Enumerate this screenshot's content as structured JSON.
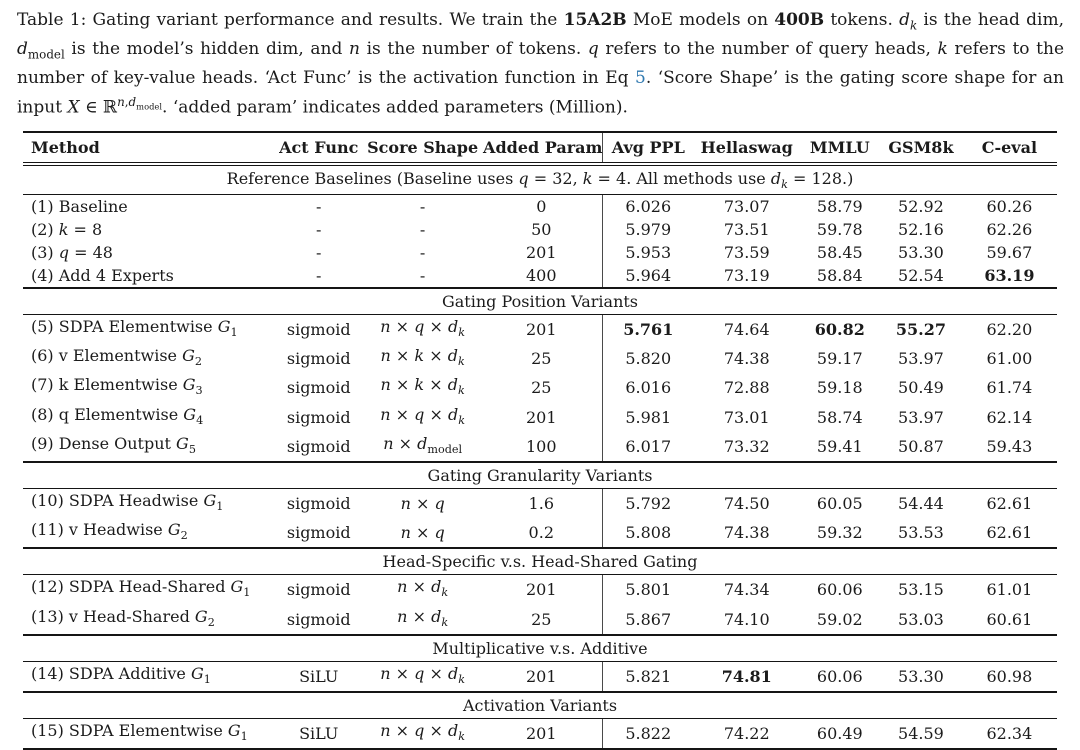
{
  "colors": {
    "text": "#1b1b1b",
    "rule": "#151515",
    "divider": "#4a4a4a",
    "link": "#3079b0"
  },
  "caption": {
    "text": "Table 1: Gating variant performance and results. We train the [[b]]15A2B[[/b]] MoE models on [[b]]400B[[/b]] tokens. [[i]]d[[/i]][[sub]][[i]]k[[/i]][[/sub]] is the head dim, [[i]]d[[/i]][[sub]]model[[/sub]] is the model’s hidden dim, and [[i]]n[[/i]] is the number of tokens. [[i]]q[[/i]] refers to the number of query heads, [[i]]k[[/i]] refers to the number of key-value heads. ‘Act Func’ is the activation function in Eq [[link]]5[[/link]]. ‘Score Shape’ is the gating score shape for an input [[i]]X[[/i]] ∈ ℝ[[sup]][[i]]n[[/i]],[[i]]d[[/i]][[sub]]model[[/sub]][[/sup]]. ‘added param’ indicates added parameters (Million)."
  },
  "table": {
    "columns": [
      {
        "key": "method",
        "label": "Method"
      },
      {
        "key": "act-func",
        "label": "Act Func"
      },
      {
        "key": "score-shape",
        "label": "Score Shape"
      },
      {
        "key": "added-param",
        "label": "Added Param"
      },
      {
        "key": "avg-ppl",
        "label": "Avg PPL"
      },
      {
        "key": "hellaswag",
        "label": "Hellaswag"
      },
      {
        "key": "mmlu",
        "label": "MMLU"
      },
      {
        "key": "gsm8k",
        "label": "GSM8k"
      },
      {
        "key": "c-eval",
        "label": "C-eval"
      }
    ],
    "sections": [
      {
        "title": "Reference Baselines (Baseline uses [[i]]q[[/i]] = 32, [[i]]k[[/i]] = 4. All methods use [[i]]d[[/i]][[sub]][[i]]k[[/i]][[/sub]] = 128.)",
        "rows": [
          [
            "(1) Baseline",
            "-",
            "-",
            "0",
            "6.026",
            "73.07",
            "58.79",
            "52.92",
            "60.26"
          ],
          [
            "(2) [[i]]k[[/i]] = 8",
            "-",
            "-",
            "50",
            "5.979",
            "73.51",
            "59.78",
            "52.16",
            "62.26"
          ],
          [
            "(3) [[i]]q[[/i]] = 48",
            "-",
            "-",
            "201",
            "5.953",
            "73.59",
            "58.45",
            "53.30",
            "59.67"
          ],
          [
            "(4) Add 4 Experts",
            "-",
            "-",
            "400",
            "5.964",
            "73.19",
            "58.84",
            "52.54",
            "[[b]]63.19[[/b]]"
          ]
        ]
      },
      {
        "title": "Gating Position Variants",
        "rows": [
          [
            "(5) SDPA Elementwise [[i]]G[[/i]][[sub]]1[[/sub]]",
            "sigmoid",
            "[[i]]n[[/i]] × [[i]]q[[/i]] × [[i]]d[[/i]][[sub]][[i]]k[[/i]][[/sub]]",
            "201",
            "[[b]]5.761[[/b]]",
            "74.64",
            "[[b]]60.82[[/b]]",
            "[[b]]55.27[[/b]]",
            "62.20"
          ],
          [
            "(6) v Elementwise [[i]]G[[/i]][[sub]]2[[/sub]]",
            "sigmoid",
            "[[i]]n[[/i]] × [[i]]k[[/i]] × [[i]]d[[/i]][[sub]][[i]]k[[/i]][[/sub]]",
            "25",
            "5.820",
            "74.38",
            "59.17",
            "53.97",
            "61.00"
          ],
          [
            "(7) k Elementwise [[i]]G[[/i]][[sub]]3[[/sub]]",
            "sigmoid",
            "[[i]]n[[/i]] × [[i]]k[[/i]] × [[i]]d[[/i]][[sub]][[i]]k[[/i]][[/sub]]",
            "25",
            "6.016",
            "72.88",
            "59.18",
            "50.49",
            "61.74"
          ],
          [
            "(8) q Elementwise [[i]]G[[/i]][[sub]]4[[/sub]]",
            "sigmoid",
            "[[i]]n[[/i]] × [[i]]q[[/i]] × [[i]]d[[/i]][[sub]][[i]]k[[/i]][[/sub]]",
            "201",
            "5.981",
            "73.01",
            "58.74",
            "53.97",
            "62.14"
          ],
          [
            "(9) Dense Output [[i]]G[[/i]][[sub]]5[[/sub]]",
            "sigmoid",
            "[[i]]n[[/i]] × [[i]]d[[/i]][[sub]]model[[/sub]]",
            "100",
            "6.017",
            "73.32",
            "59.41",
            "50.87",
            "59.43"
          ]
        ]
      },
      {
        "title": "Gating Granularity Variants",
        "rows": [
          [
            "(10) SDPA Headwise [[i]]G[[/i]][[sub]]1[[/sub]]",
            "sigmoid",
            "[[i]]n[[/i]] × [[i]]q[[/i]]",
            "1.6",
            "5.792",
            "74.50",
            "60.05",
            "54.44",
            "62.61"
          ],
          [
            "(11) v Headwise [[i]]G[[/i]][[sub]]2[[/sub]]",
            "sigmoid",
            "[[i]]n[[/i]] × [[i]]q[[/i]]",
            "0.2",
            "5.808",
            "74.38",
            "59.32",
            "53.53",
            "62.61"
          ]
        ]
      },
      {
        "title": "Head-Specific v.s. Head-Shared Gating",
        "rows": [
          [
            "(12) SDPA Head-Shared [[i]]G[[/i]][[sub]]1[[/sub]]",
            "sigmoid",
            "[[i]]n[[/i]] × [[i]]d[[/i]][[sub]][[i]]k[[/i]][[/sub]]",
            "201",
            "5.801",
            "74.34",
            "60.06",
            "53.15",
            "61.01"
          ],
          [
            "(13) v Head-Shared [[i]]G[[/i]][[sub]]2[[/sub]]",
            "sigmoid",
            "[[i]]n[[/i]] × [[i]]d[[/i]][[sub]][[i]]k[[/i]][[/sub]]",
            "25",
            "5.867",
            "74.10",
            "59.02",
            "53.03",
            "60.61"
          ]
        ]
      },
      {
        "title": "Multiplicative v.s. Additive",
        "rows": [
          [
            "(14) SDPA Additive [[i]]G[[/i]][[sub]]1[[/sub]]",
            "SiLU",
            "[[i]]n[[/i]] × [[i]]q[[/i]] × [[i]]d[[/i]][[sub]][[i]]k[[/i]][[/sub]]",
            "201",
            "5.821",
            "[[b]]74.81[[/b]]",
            "60.06",
            "53.30",
            "60.98"
          ]
        ]
      },
      {
        "title": "Activation Variants",
        "rows": [
          [
            "(15) SDPA Elementwise [[i]]G[[/i]][[sub]]1[[/sub]]",
            "SiLU",
            "[[i]]n[[/i]] × [[i]]q[[/i]] × [[i]]d[[/i]][[sub]][[i]]k[[/i]][[/sub]]",
            "201",
            "5.822",
            "74.22",
            "60.49",
            "54.59",
            "62.34"
          ]
        ]
      }
    ]
  }
}
